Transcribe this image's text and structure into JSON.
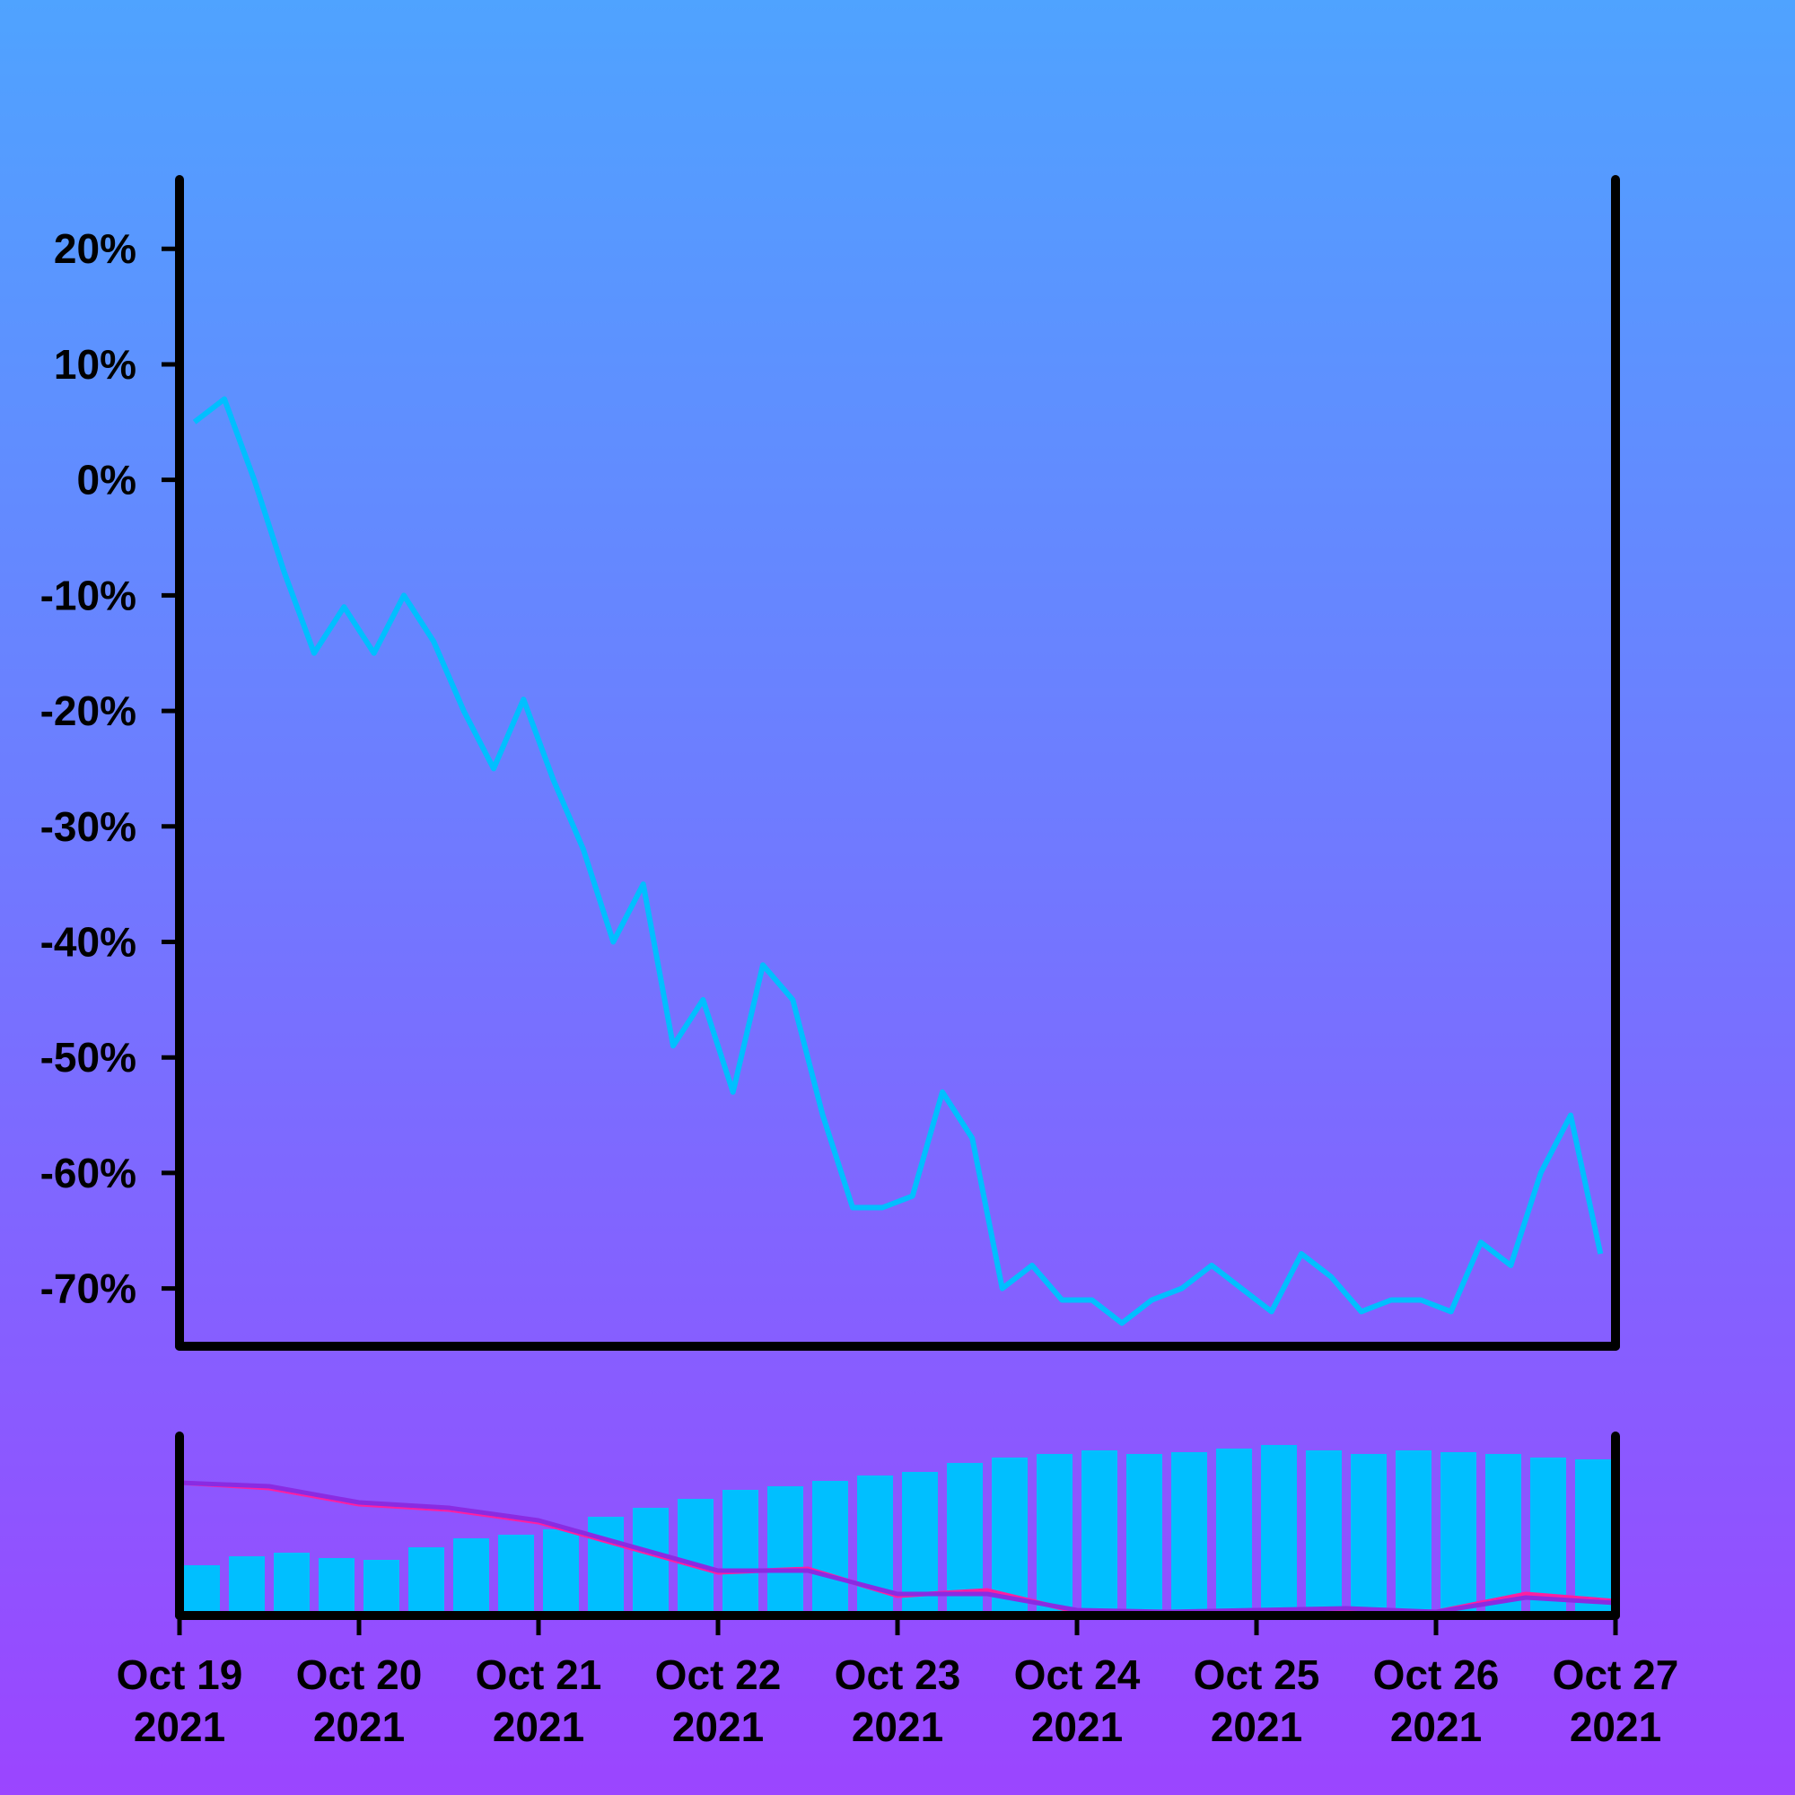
{
  "chart_data": [
    {
      "type": "line",
      "title": "",
      "xlabel": "",
      "ylabel": "",
      "ylim": [
        -75,
        26
      ],
      "xlim": [
        "2021-10-19",
        "2021-10-27"
      ],
      "grid": false,
      "y_ticks": [
        {
          "value": 20,
          "label": "20%"
        },
        {
          "value": 10,
          "label": "10%"
        },
        {
          "value": 0,
          "label": "0%"
        },
        {
          "value": -10,
          "label": "-10%"
        },
        {
          "value": -20,
          "label": "-20%"
        },
        {
          "value": -30,
          "label": "-30%"
        },
        {
          "value": -40,
          "label": "-40%"
        },
        {
          "value": -50,
          "label": "-50%"
        },
        {
          "value": -60,
          "label": "-60%"
        },
        {
          "value": -70,
          "label": "-70%"
        }
      ],
      "series": [
        {
          "color": "#00bfff",
          "x": [
            "2021-10-19 02:00",
            "2021-10-19 06:00",
            "2021-10-19 10:00",
            "2021-10-19 14:00",
            "2021-10-19 18:00",
            "2021-10-19 22:00",
            "2021-10-20 02:00",
            "2021-10-20 06:00",
            "2021-10-20 10:00",
            "2021-10-20 14:00",
            "2021-10-20 18:00",
            "2021-10-20 22:00",
            "2021-10-21 02:00",
            "2021-10-21 06:00",
            "2021-10-21 10:00",
            "2021-10-21 14:00",
            "2021-10-21 18:00",
            "2021-10-21 22:00",
            "2021-10-22 02:00",
            "2021-10-22 06:00",
            "2021-10-22 10:00",
            "2021-10-22 14:00",
            "2021-10-22 18:00",
            "2021-10-22 22:00",
            "2021-10-23 02:00",
            "2021-10-23 06:00",
            "2021-10-23 10:00",
            "2021-10-23 14:00",
            "2021-10-23 18:00",
            "2021-10-23 22:00",
            "2021-10-24 02:00",
            "2021-10-24 06:00",
            "2021-10-24 10:00",
            "2021-10-24 14:00",
            "2021-10-24 18:00",
            "2021-10-24 22:00",
            "2021-10-25 02:00",
            "2021-10-25 06:00",
            "2021-10-25 10:00",
            "2021-10-25 14:00",
            "2021-10-25 18:00",
            "2021-10-25 22:00",
            "2021-10-26 02:00",
            "2021-10-26 06:00",
            "2021-10-26 10:00",
            "2021-10-26 14:00",
            "2021-10-26 18:00",
            "2021-10-26 22:00"
          ],
          "values": [
            5,
            7,
            0,
            -8,
            -15,
            -11,
            -15,
            -10,
            -14,
            -20,
            -25,
            -19,
            -26,
            -32,
            -40,
            -35,
            -49,
            -45,
            -53,
            -42,
            -45,
            -55,
            -63,
            -63,
            -62,
            -53,
            -57,
            -70,
            -68,
            -71,
            -71,
            -73,
            -71,
            -70,
            -68,
            -70,
            -72,
            -67,
            -69,
            -72,
            -71,
            -71,
            -72,
            -66,
            -68,
            -60,
            -55,
            -67
          ]
        }
      ]
    },
    {
      "type": "bar",
      "title": "",
      "xlabel": "",
      "ylabel": "",
      "ylim": [
        0,
        100
      ],
      "grid": false,
      "x_ticks": [
        {
          "value": "2021-10-19",
          "label": "Oct 19\n2021"
        },
        {
          "value": "2021-10-20",
          "label": "Oct 20\n2021"
        },
        {
          "value": "2021-10-21",
          "label": "Oct 21\n2021"
        },
        {
          "value": "2021-10-22",
          "label": "Oct 22\n2021"
        },
        {
          "value": "2021-10-23",
          "label": "Oct 23\n2021"
        },
        {
          "value": "2021-10-24",
          "label": "Oct 24\n2021"
        },
        {
          "value": "2021-10-25",
          "label": "Oct 25\n2021"
        },
        {
          "value": "2021-10-26",
          "label": "Oct 26\n2021"
        },
        {
          "value": "2021-10-27",
          "label": "Oct 27\n2021"
        }
      ],
      "series": [
        {
          "type": "bar",
          "color": "#00bfff",
          "x": [
            "2021-10-19 03:00",
            "2021-10-19 09:00",
            "2021-10-19 15:00",
            "2021-10-19 21:00",
            "2021-10-20 03:00",
            "2021-10-20 09:00",
            "2021-10-20 15:00",
            "2021-10-20 21:00",
            "2021-10-21 03:00",
            "2021-10-21 09:00",
            "2021-10-21 15:00",
            "2021-10-21 21:00",
            "2021-10-22 03:00",
            "2021-10-22 09:00",
            "2021-10-22 15:00",
            "2021-10-22 21:00",
            "2021-10-23 03:00",
            "2021-10-23 09:00",
            "2021-10-23 15:00",
            "2021-10-23 21:00",
            "2021-10-24 03:00",
            "2021-10-24 09:00",
            "2021-10-24 15:00",
            "2021-10-24 21:00",
            "2021-10-25 03:00",
            "2021-10-25 09:00",
            "2021-10-25 15:00",
            "2021-10-25 21:00",
            "2021-10-26 03:00",
            "2021-10-26 09:00",
            "2021-10-26 15:00",
            "2021-10-26 21:00"
          ],
          "values": [
            28,
            33,
            35,
            32,
            31,
            38,
            43,
            45,
            48,
            55,
            60,
            65,
            70,
            72,
            75,
            78,
            80,
            85,
            88,
            90,
            92,
            90,
            91,
            93,
            95,
            92,
            90,
            92,
            91,
            90,
            88,
            87
          ]
        },
        {
          "type": "line",
          "color": "#ff1fa0",
          "x": [
            "2021-10-19 00:00",
            "2021-10-19 12:00",
            "2021-10-20 00:00",
            "2021-10-20 12:00",
            "2021-10-21 00:00",
            "2021-10-21 12:00",
            "2021-10-22 00:00",
            "2021-10-22 12:00",
            "2021-10-23 00:00",
            "2021-10-23 12:00",
            "2021-10-24 00:00",
            "2021-10-24 12:00",
            "2021-10-25 00:00",
            "2021-10-25 12:00",
            "2021-10-26 00:00",
            "2021-10-26 12:00",
            "2021-10-27 00:00"
          ],
          "values": [
            74,
            71,
            62,
            59,
            52,
            38,
            24,
            26,
            11,
            14,
            2,
            1,
            3,
            3,
            2,
            12,
            8
          ]
        },
        {
          "type": "line",
          "color": "#8a2be2",
          "x": [
            "2021-10-19 00:00",
            "2021-10-19 12:00",
            "2021-10-20 00:00",
            "2021-10-20 12:00",
            "2021-10-21 00:00",
            "2021-10-21 12:00",
            "2021-10-22 00:00",
            "2021-10-22 12:00",
            "2021-10-23 00:00",
            "2021-10-23 12:00",
            "2021-10-24 00:00",
            "2021-10-24 12:00",
            "2021-10-25 00:00",
            "2021-10-25 12:00",
            "2021-10-26 00:00",
            "2021-10-26 12:00",
            "2021-10-27 00:00"
          ],
          "values": [
            74,
            72,
            63,
            60,
            53,
            39,
            25,
            25,
            12,
            12,
            3,
            2,
            3,
            4,
            2,
            10,
            7
          ]
        }
      ]
    }
  ]
}
